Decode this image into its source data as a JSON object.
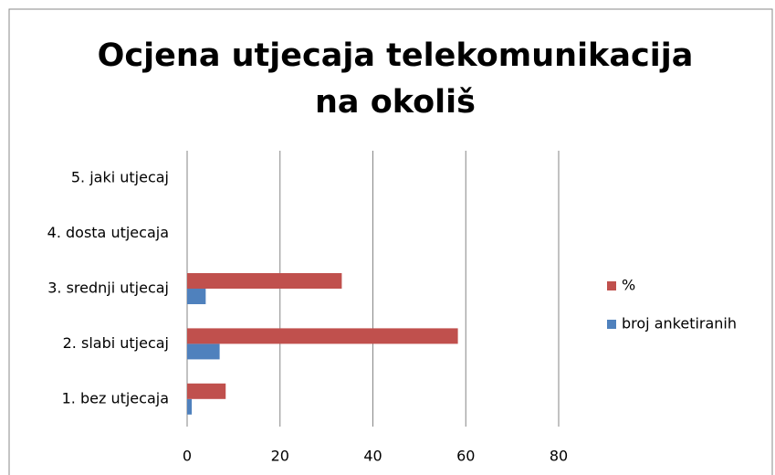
{
  "chart_data": {
    "type": "bar",
    "orientation": "horizontal",
    "title": "Ocjena utjecaja telekomunikacija na okoliš",
    "categories": [
      "1. bez utjecaja",
      "2. slabi utjecaj",
      "3. srednji utjecaj",
      "4. dosta utjecaja",
      "5. jaki utjecaj"
    ],
    "series": [
      {
        "name": "broj anketiranih",
        "color": "#4f81bd",
        "values": [
          1,
          7,
          4,
          0,
          0
        ]
      },
      {
        "name": "%",
        "color": "#c0504d",
        "values": [
          8.3,
          58.3,
          33.3,
          0,
          0
        ]
      }
    ],
    "xlim": [
      0,
      80
    ],
    "xticks": [
      0,
      20,
      40,
      60,
      80
    ],
    "grid": true,
    "legend": "right"
  }
}
